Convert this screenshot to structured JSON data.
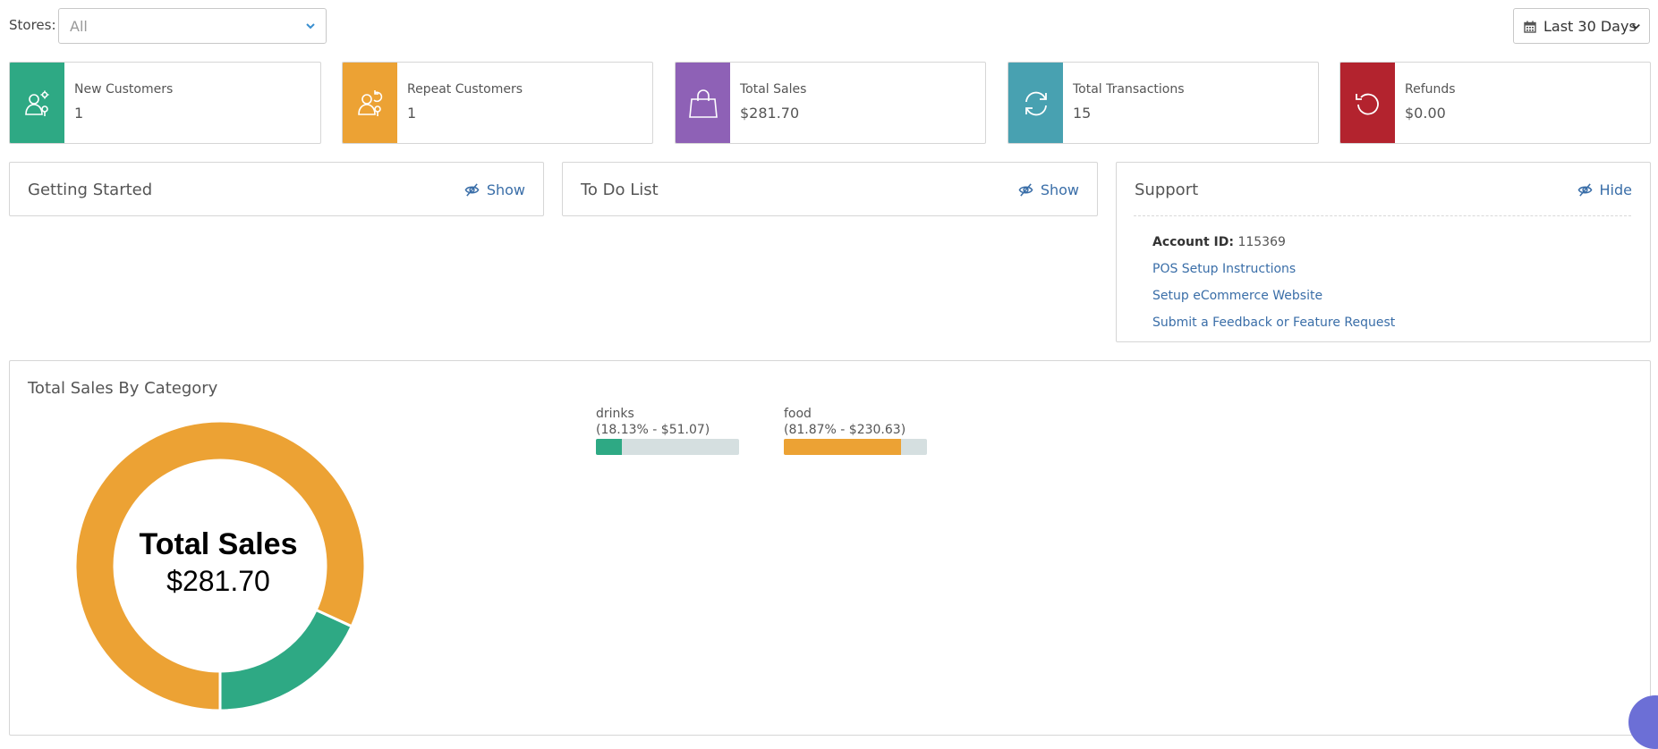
{
  "filters": {
    "stores_label": "Stores:",
    "stores_value": "All",
    "date_range": "Last 30 Days"
  },
  "stats": [
    {
      "title": "New Customers",
      "value": "1",
      "color": "#2ea984",
      "icon": "user-gear-icon"
    },
    {
      "title": "Repeat Customers",
      "value": "1",
      "color": "#eca234",
      "icon": "user-repeat-icon"
    },
    {
      "title": "Total Sales",
      "value": "$281.70",
      "color": "#8e61b6",
      "icon": "shopping-bag-icon"
    },
    {
      "title": "Total Transactions",
      "value": "15",
      "color": "#48a1b1",
      "icon": "refresh-icon"
    },
    {
      "title": "Refunds",
      "value": "$0.00",
      "color": "#b3232e",
      "icon": "undo-icon"
    }
  ],
  "panels": {
    "getting_started": {
      "title": "Getting Started",
      "toggle": "Show"
    },
    "todo": {
      "title": "To Do List",
      "toggle": "Show"
    },
    "support": {
      "title": "Support",
      "toggle": "Hide",
      "account_label": "Account ID:",
      "account_id": "115369",
      "links": [
        "POS Setup Instructions",
        "Setup eCommerce Website",
        "Submit a Feedback or Feature Request"
      ]
    }
  },
  "sales_by_category": {
    "title": "Total Sales By Category",
    "center_title": "Total Sales",
    "center_value": "$281.70"
  },
  "chart_data": {
    "type": "pie",
    "categories": [
      "drinks",
      "food"
    ],
    "values": [
      51.07,
      230.63
    ],
    "percents": [
      18.13,
      81.87
    ],
    "labels": [
      "(18.13% - $51.07)",
      "(81.87% - $230.63)"
    ],
    "colors": [
      "#2ea984",
      "#eca234"
    ],
    "total": 281.7
  }
}
